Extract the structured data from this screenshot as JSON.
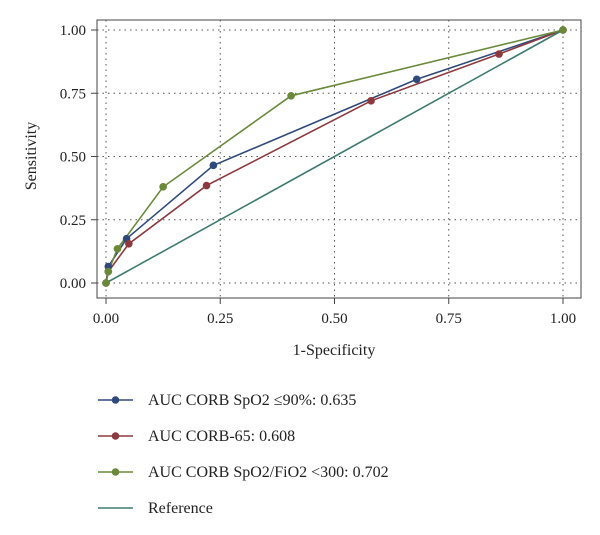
{
  "chart_data": {
    "type": "line",
    "title": "",
    "xlabel": "1-Specificity",
    "ylabel": "Sensitivity",
    "xlim": [
      0,
      1
    ],
    "ylim": [
      0,
      1
    ],
    "x_ticks": [
      "0.00",
      "0.25",
      "0.50",
      "0.75",
      "1.00"
    ],
    "y_ticks": [
      "0.00",
      "0.25",
      "0.50",
      "0.75",
      "1.00"
    ],
    "grid": "dotted",
    "legend_position": "bottom",
    "series": [
      {
        "name": "AUC CORB SpO2 ≤90%: 0.635",
        "color": "#2f4a7a",
        "markers": true,
        "points": [
          [
            0.0,
            0.0
          ],
          [
            0.005,
            0.065
          ],
          [
            0.045,
            0.175
          ],
          [
            0.235,
            0.465
          ],
          [
            0.68,
            0.805
          ],
          [
            1.0,
            1.0
          ]
        ]
      },
      {
        "name": "AUC CORB-65: 0.608",
        "color": "#8c3a3f",
        "markers": true,
        "points": [
          [
            0.0,
            0.0
          ],
          [
            0.005,
            0.045
          ],
          [
            0.05,
            0.155
          ],
          [
            0.22,
            0.385
          ],
          [
            0.58,
            0.72
          ],
          [
            0.86,
            0.905
          ],
          [
            1.0,
            1.0
          ]
        ]
      },
      {
        "name": "AUC CORB SpO2/FiO2 <300: 0.702",
        "color": "#6a8a3a",
        "markers": true,
        "points": [
          [
            0.0,
            0.0
          ],
          [
            0.005,
            0.045
          ],
          [
            0.025,
            0.135
          ],
          [
            0.125,
            0.38
          ],
          [
            0.405,
            0.74
          ],
          [
            1.0,
            1.0
          ]
        ]
      },
      {
        "name": "Reference",
        "color": "#3e7a6e",
        "markers": false,
        "points": [
          [
            0.0,
            0.0
          ],
          [
            1.0,
            1.0
          ]
        ]
      }
    ]
  }
}
